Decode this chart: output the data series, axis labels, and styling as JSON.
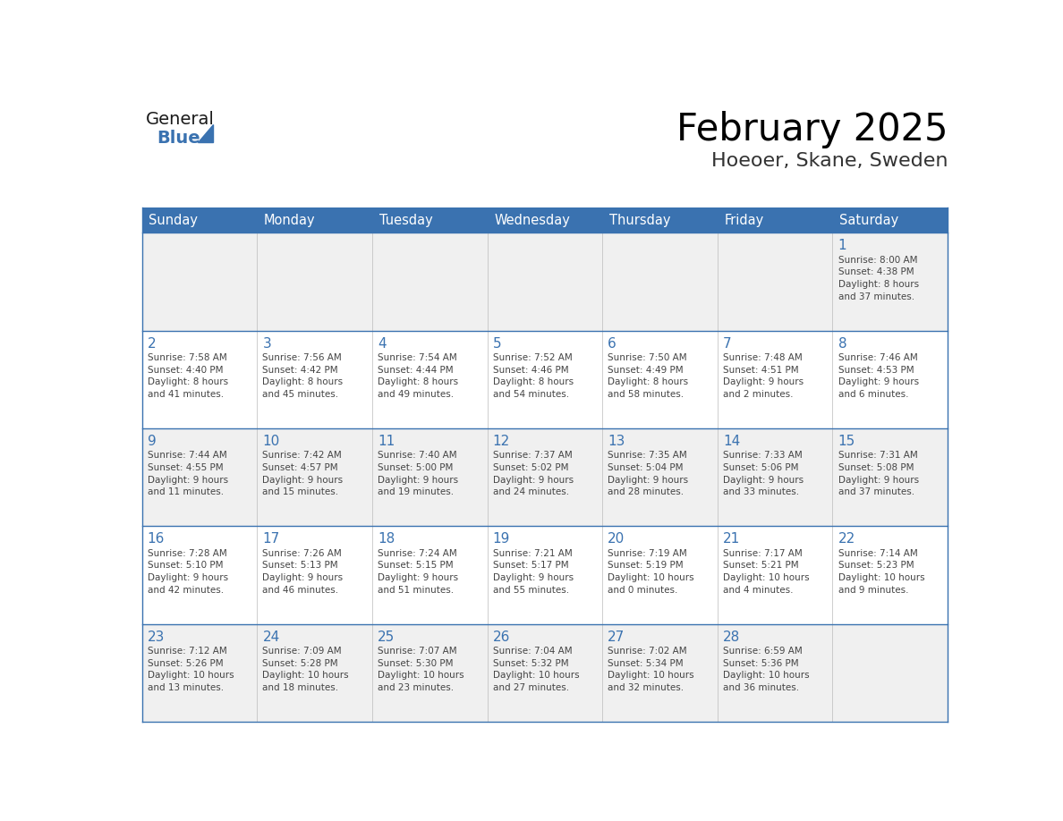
{
  "title": "February 2025",
  "subtitle": "Hoeoer, Skane, Sweden",
  "header_color": "#3a72b0",
  "header_text_color": "#ffffff",
  "cell_bg_even": "#f0f0f0",
  "cell_bg_odd": "#ffffff",
  "day_number_color": "#3a72b0",
  "text_color": "#444444",
  "line_color": "#3a72b0",
  "days_of_week": [
    "Sunday",
    "Monday",
    "Tuesday",
    "Wednesday",
    "Thursday",
    "Friday",
    "Saturday"
  ],
  "weeks": [
    [
      {
        "day": null,
        "info": null
      },
      {
        "day": null,
        "info": null
      },
      {
        "day": null,
        "info": null
      },
      {
        "day": null,
        "info": null
      },
      {
        "day": null,
        "info": null
      },
      {
        "day": null,
        "info": null
      },
      {
        "day": 1,
        "info": "Sunrise: 8:00 AM\nSunset: 4:38 PM\nDaylight: 8 hours\nand 37 minutes."
      }
    ],
    [
      {
        "day": 2,
        "info": "Sunrise: 7:58 AM\nSunset: 4:40 PM\nDaylight: 8 hours\nand 41 minutes."
      },
      {
        "day": 3,
        "info": "Sunrise: 7:56 AM\nSunset: 4:42 PM\nDaylight: 8 hours\nand 45 minutes."
      },
      {
        "day": 4,
        "info": "Sunrise: 7:54 AM\nSunset: 4:44 PM\nDaylight: 8 hours\nand 49 minutes."
      },
      {
        "day": 5,
        "info": "Sunrise: 7:52 AM\nSunset: 4:46 PM\nDaylight: 8 hours\nand 54 minutes."
      },
      {
        "day": 6,
        "info": "Sunrise: 7:50 AM\nSunset: 4:49 PM\nDaylight: 8 hours\nand 58 minutes."
      },
      {
        "day": 7,
        "info": "Sunrise: 7:48 AM\nSunset: 4:51 PM\nDaylight: 9 hours\nand 2 minutes."
      },
      {
        "day": 8,
        "info": "Sunrise: 7:46 AM\nSunset: 4:53 PM\nDaylight: 9 hours\nand 6 minutes."
      }
    ],
    [
      {
        "day": 9,
        "info": "Sunrise: 7:44 AM\nSunset: 4:55 PM\nDaylight: 9 hours\nand 11 minutes."
      },
      {
        "day": 10,
        "info": "Sunrise: 7:42 AM\nSunset: 4:57 PM\nDaylight: 9 hours\nand 15 minutes."
      },
      {
        "day": 11,
        "info": "Sunrise: 7:40 AM\nSunset: 5:00 PM\nDaylight: 9 hours\nand 19 minutes."
      },
      {
        "day": 12,
        "info": "Sunrise: 7:37 AM\nSunset: 5:02 PM\nDaylight: 9 hours\nand 24 minutes."
      },
      {
        "day": 13,
        "info": "Sunrise: 7:35 AM\nSunset: 5:04 PM\nDaylight: 9 hours\nand 28 minutes."
      },
      {
        "day": 14,
        "info": "Sunrise: 7:33 AM\nSunset: 5:06 PM\nDaylight: 9 hours\nand 33 minutes."
      },
      {
        "day": 15,
        "info": "Sunrise: 7:31 AM\nSunset: 5:08 PM\nDaylight: 9 hours\nand 37 minutes."
      }
    ],
    [
      {
        "day": 16,
        "info": "Sunrise: 7:28 AM\nSunset: 5:10 PM\nDaylight: 9 hours\nand 42 minutes."
      },
      {
        "day": 17,
        "info": "Sunrise: 7:26 AM\nSunset: 5:13 PM\nDaylight: 9 hours\nand 46 minutes."
      },
      {
        "day": 18,
        "info": "Sunrise: 7:24 AM\nSunset: 5:15 PM\nDaylight: 9 hours\nand 51 minutes."
      },
      {
        "day": 19,
        "info": "Sunrise: 7:21 AM\nSunset: 5:17 PM\nDaylight: 9 hours\nand 55 minutes."
      },
      {
        "day": 20,
        "info": "Sunrise: 7:19 AM\nSunset: 5:19 PM\nDaylight: 10 hours\nand 0 minutes."
      },
      {
        "day": 21,
        "info": "Sunrise: 7:17 AM\nSunset: 5:21 PM\nDaylight: 10 hours\nand 4 minutes."
      },
      {
        "day": 22,
        "info": "Sunrise: 7:14 AM\nSunset: 5:23 PM\nDaylight: 10 hours\nand 9 minutes."
      }
    ],
    [
      {
        "day": 23,
        "info": "Sunrise: 7:12 AM\nSunset: 5:26 PM\nDaylight: 10 hours\nand 13 minutes."
      },
      {
        "day": 24,
        "info": "Sunrise: 7:09 AM\nSunset: 5:28 PM\nDaylight: 10 hours\nand 18 minutes."
      },
      {
        "day": 25,
        "info": "Sunrise: 7:07 AM\nSunset: 5:30 PM\nDaylight: 10 hours\nand 23 minutes."
      },
      {
        "day": 26,
        "info": "Sunrise: 7:04 AM\nSunset: 5:32 PM\nDaylight: 10 hours\nand 27 minutes."
      },
      {
        "day": 27,
        "info": "Sunrise: 7:02 AM\nSunset: 5:34 PM\nDaylight: 10 hours\nand 32 minutes."
      },
      {
        "day": 28,
        "info": "Sunrise: 6:59 AM\nSunset: 5:36 PM\nDaylight: 10 hours\nand 36 minutes."
      },
      {
        "day": null,
        "info": null
      }
    ]
  ],
  "logo_text_general": "General",
  "logo_text_blue": "Blue",
  "logo_color_general": "#1a1a1a",
  "logo_color_blue": "#3a72b0",
  "logo_triangle_color": "#3a72b0"
}
